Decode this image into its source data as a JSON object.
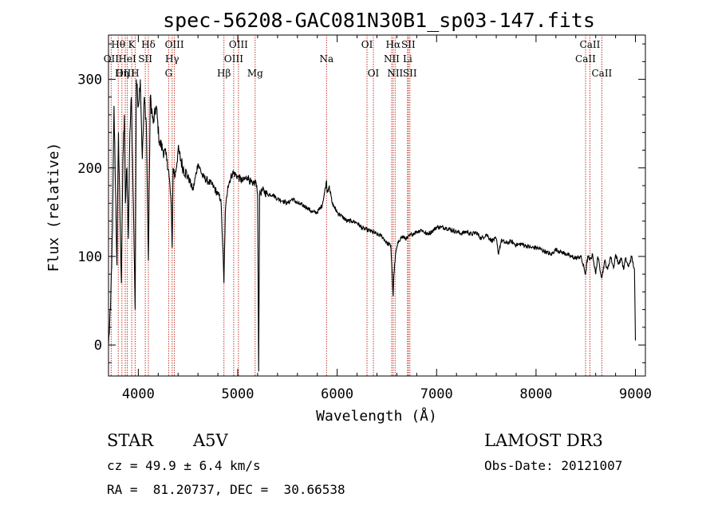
{
  "chart_data": {
    "type": "line",
    "title": "spec-56208-GAC081N30B1_sp03-147.fits",
    "xlabel": "Wavelength (Å)",
    "ylabel": "Flux (relative)",
    "xlim": [
      3700,
      9100
    ],
    "ylim": [
      -35,
      350
    ],
    "xticks": [
      4000,
      5000,
      6000,
      7000,
      8000,
      9000
    ],
    "yticks": [
      0,
      100,
      200,
      300
    ],
    "grid": false,
    "series": [
      {
        "name": "flux",
        "x": [
          3700,
          3720,
          3740,
          3755,
          3770,
          3785,
          3800,
          3815,
          3830,
          3845,
          3860,
          3870,
          3885,
          3900,
          3915,
          3930,
          3950,
          3968,
          3980,
          4000,
          4020,
          4040,
          4060,
          4080,
          4101,
          4120,
          4150,
          4180,
          4210,
          4250,
          4290,
          4310,
          4330,
          4340,
          4350,
          4370,
          4400,
          4450,
          4500,
          4550,
          4600,
          4650,
          4700,
          4750,
          4800,
          4830,
          4850,
          4861,
          4875,
          4900,
          4950,
          5000,
          5050,
          5100,
          5150,
          5180,
          5200,
          5210,
          5220,
          5250,
          5300,
          5350,
          5400,
          5450,
          5500,
          5550,
          5600,
          5650,
          5700,
          5750,
          5800,
          5850,
          5893,
          5900,
          5920,
          5950,
          6000,
          6050,
          6100,
          6150,
          6200,
          6250,
          6300,
          6350,
          6400,
          6450,
          6500,
          6540,
          6555,
          6563,
          6570,
          6590,
          6620,
          6650,
          6700,
          6750,
          6800,
          6850,
          6900,
          6950,
          7000,
          7050,
          7100,
          7150,
          7200,
          7250,
          7300,
          7350,
          7400,
          7450,
          7500,
          7550,
          7600,
          7620,
          7650,
          7700,
          7750,
          7800,
          7850,
          7900,
          7950,
          8000,
          8050,
          8100,
          8150,
          8200,
          8250,
          8300,
          8350,
          8400,
          8450,
          8498,
          8520,
          8542,
          8570,
          8600,
          8620,
          8662,
          8690,
          8720,
          8750,
          8780,
          8800,
          8830,
          8860,
          8880,
          8900,
          8930,
          8960,
          8990,
          9000
        ],
        "values": [
          0,
          40,
          130,
          270,
          180,
          90,
          240,
          150,
          70,
          210,
          260,
          160,
          200,
          120,
          240,
          280,
          160,
          40,
          300,
          270,
          300,
          210,
          280,
          250,
          95,
          280,
          250,
          270,
          230,
          220,
          210,
          190,
          160,
          110,
          200,
          190,
          220,
          200,
          190,
          175,
          205,
          190,
          185,
          180,
          170,
          165,
          110,
          70,
          150,
          180,
          195,
          190,
          185,
          190,
          180,
          185,
          170,
          -30,
          170,
          175,
          170,
          170,
          165,
          163,
          160,
          165,
          160,
          158,
          155,
          150,
          150,
          158,
          185,
          172,
          180,
          160,
          150,
          145,
          140,
          140,
          138,
          132,
          130,
          128,
          125,
          123,
          115,
          112,
          75,
          55,
          80,
          105,
          118,
          122,
          120,
          125,
          128,
          130,
          125,
          128,
          133,
          133,
          132,
          130,
          128,
          126,
          128,
          125,
          127,
          120,
          125,
          118,
          120,
          103,
          118,
          115,
          117,
          113,
          114,
          112,
          110,
          110,
          108,
          105,
          102,
          108,
          105,
          103,
          100,
          98,
          100,
          80,
          100,
          96,
          102,
          80,
          100,
          76,
          95,
          85,
          100,
          87,
          102,
          92,
          98,
          85,
          98,
          88,
          100,
          85,
          5
        ]
      }
    ],
    "line_markers": [
      {
        "label": "Hθ",
        "wavelength": 3798,
        "row": 1
      },
      {
        "label": "OII",
        "wavelength": 3727,
        "row": 2
      },
      {
        "label": "OIII",
        "wavelength": 3869,
        "row": 3
      },
      {
        "label": "K",
        "wavelength": 3934,
        "row": 1
      },
      {
        "label": "HeI",
        "wavelength": 3889,
        "row": 2
      },
      {
        "label": "Hη",
        "wavelength": 3835,
        "row": 3
      },
      {
        "label": "Hδ",
        "wavelength": 4101,
        "row": 1
      },
      {
        "label": "SII",
        "wavelength": 4070,
        "row": 2
      },
      {
        "label": "H",
        "wavelength": 3968,
        "row": 3
      },
      {
        "label": "OIII",
        "wavelength": 4363,
        "row": 1
      },
      {
        "label": "Hγ",
        "wavelength": 4340,
        "row": 2
      },
      {
        "label": "G",
        "wavelength": 4305,
        "row": 3
      },
      {
        "label": "OIII",
        "wavelength": 5007,
        "row": 1
      },
      {
        "label": "OIII",
        "wavelength": 4959,
        "row": 2
      },
      {
        "label": "Hβ",
        "wavelength": 4861,
        "row": 3
      },
      {
        "label": "Mg",
        "wavelength": 5175,
        "row": 3
      },
      {
        "label": "Na",
        "wavelength": 5893,
        "row": 2
      },
      {
        "label": "OI",
        "wavelength": 6300,
        "row": 1
      },
      {
        "label": "OI",
        "wavelength": 6364,
        "row": 3
      },
      {
        "label": "Hα",
        "wavelength": 6563,
        "row": 1
      },
      {
        "label": "NII",
        "wavelength": 6548,
        "row": 2
      },
      {
        "label": "NII",
        "wavelength": 6583,
        "row": 3
      },
      {
        "label": "SII",
        "wavelength": 6716,
        "row": 1
      },
      {
        "label": "Li",
        "wavelength": 6708,
        "row": 2
      },
      {
        "label": "SII",
        "wavelength": 6731,
        "row": 3
      },
      {
        "label": "CaII",
        "wavelength": 8542,
        "row": 1
      },
      {
        "label": "CaII",
        "wavelength": 8498,
        "row": 2
      },
      {
        "label": "CaII",
        "wavelength": 8662,
        "row": 3
      }
    ]
  },
  "info": {
    "class_label": "STAR",
    "subclass": "A5V",
    "survey": "LAMOST DR3",
    "cz": "cz = 49.9 ± 6.4 km/s",
    "obs_date": "Obs-Date: 20121007",
    "coords": "RA =  81.20737, DEC =  30.66538"
  }
}
